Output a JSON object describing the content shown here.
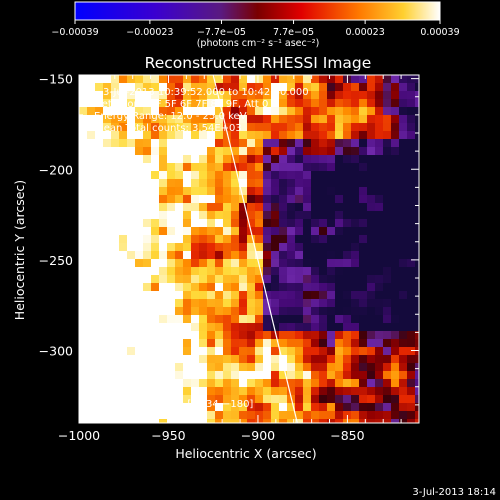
{
  "chart_data": {
    "type": "heatmap",
    "title": "Reconstructed RHESSI Image",
    "xlabel": "Heliocentric X (arcsec)",
    "ylabel": "Heliocentric Y (arcsec)",
    "xlim": [
      -1000,
      -810
    ],
    "ylim": [
      -340,
      -148
    ],
    "x_ticks": [
      -1000,
      -950,
      -900,
      -850
    ],
    "x_tick_labels": [
      "−1000",
      "−950",
      "−900",
      "−850"
    ],
    "y_ticks": [
      -300,
      -250,
      -200,
      -150
    ],
    "y_tick_labels": [
      "−300",
      "−250",
      "−200",
      "−150"
    ],
    "colorbar": {
      "range": [
        -0.00039,
        0.00039
      ],
      "ticks": [
        -0.00039,
        -0.00023,
        -7.7e-05,
        7.7e-05,
        0.00023,
        0.00039
      ],
      "tick_labels": [
        "−0.00039",
        "−0.00023",
        "−7.7e−05",
        "7.7e−05",
        "0.00023",
        "0.00039"
      ],
      "unit_label": "(photons cm⁻² s⁻¹ asec⁻²)",
      "colors": [
        "#0000ff",
        "#3c00c8",
        "#5f1e7a",
        "#b30000",
        "#ff2200",
        "#ff8800",
        "#ffdd33",
        "#ffffff"
      ]
    },
    "annotations": [
      "3-Jul-2013 10:39:52.000 to 10:42:40.000",
      "Detectors: 3F 5F 6F 7F 8F 9F, Att 0",
      "Energy Range: 12.0 - 25.0 keV",
      "Clean    Total counts: 3.54E+03"
    ],
    "peak_label": "Position of Peak = [−934,−180]",
    "limb_line": {
      "x": [
        -925,
        -878
      ],
      "y": [
        -148,
        -340
      ]
    }
  },
  "footer": {
    "timestamp": "3-Jul-2013 18:14"
  }
}
